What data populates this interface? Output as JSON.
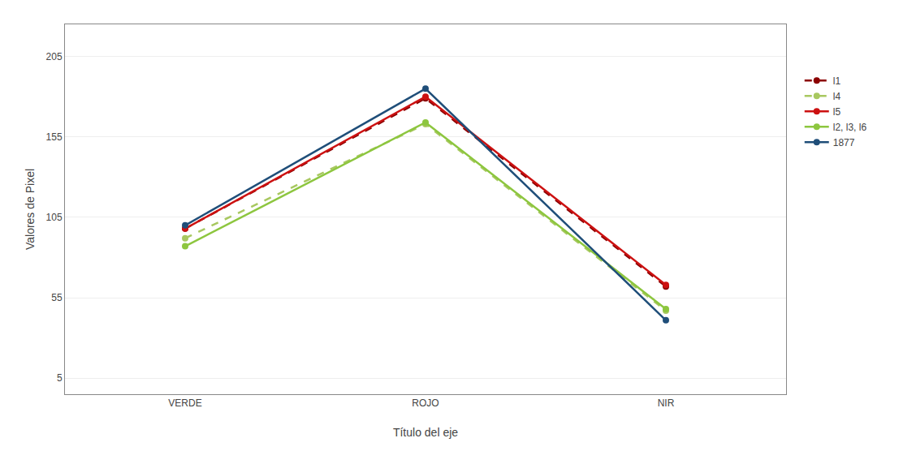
{
  "chart_data": {
    "type": "line",
    "categories": [
      "VERDE",
      "ROJO",
      "NIR"
    ],
    "series": [
      {
        "name": "l1",
        "color": "#8B0000",
        "line_style": "dashed",
        "marker": "circle",
        "values": [
          98,
          179,
          62
        ]
      },
      {
        "name": "l4",
        "color": "#A8C860",
        "line_style": "dashed",
        "marker": "circle",
        "values": [
          92,
          163,
          47
        ]
      },
      {
        "name": "l5",
        "color": "#CC1111",
        "line_style": "solid",
        "marker": "circle",
        "values": [
          98,
          180,
          63
        ]
      },
      {
        "name": "l2, l3, l6",
        "color": "#8DC63F",
        "line_style": "solid",
        "marker": "circle",
        "values": [
          87,
          164,
          48
        ]
      },
      {
        "name": "1877",
        "color": "#1F4E79",
        "line_style": "solid",
        "marker": "circle",
        "values": [
          100,
          185,
          41
        ]
      }
    ],
    "xlabel": "Título del eje",
    "ylabel": "Valores de Pixel",
    "ylim": [
      -5,
      225
    ],
    "yticks": [
      5,
      55,
      105,
      155,
      205
    ],
    "grid": "y",
    "legend": "right"
  }
}
